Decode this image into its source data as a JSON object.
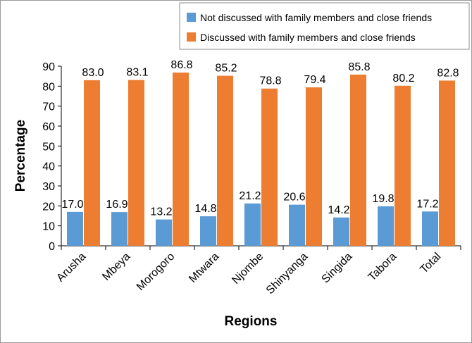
{
  "chart_data": {
    "type": "bar",
    "title": "",
    "xlabel": "Regions",
    "ylabel": "Percentage",
    "ylim": [
      0,
      90
    ],
    "yticks": [
      0,
      10,
      20,
      30,
      40,
      50,
      60,
      70,
      80,
      90
    ],
    "categories": [
      "Arusha",
      "Mbeya",
      "Morogoro",
      "Mtwara",
      "Njombe",
      "Shinyanga",
      "Singida",
      "Tabora",
      "Total"
    ],
    "series": [
      {
        "name": "Not discussed with family members and close friends",
        "color": "#5b9bd5",
        "values": [
          17.0,
          16.9,
          13.2,
          14.8,
          21.2,
          20.6,
          14.2,
          19.8,
          17.2
        ],
        "labels": [
          "17.0",
          "16.9",
          "13.2",
          "14.8",
          "21.2",
          "20.6",
          "14.2",
          "19.8",
          "17.2"
        ]
      },
      {
        "name": "Discussed with family members and close friends",
        "color": "#ed7d31",
        "values": [
          83.0,
          83.1,
          86.8,
          85.2,
          78.8,
          79.4,
          85.8,
          80.2,
          82.8
        ],
        "labels": [
          "83.0",
          "83.1",
          "86.8",
          "85.2",
          "78.8",
          "79.4",
          "85.8",
          "80.2",
          "82.8"
        ]
      }
    ],
    "legend_position": "top-right",
    "grid": false
  }
}
